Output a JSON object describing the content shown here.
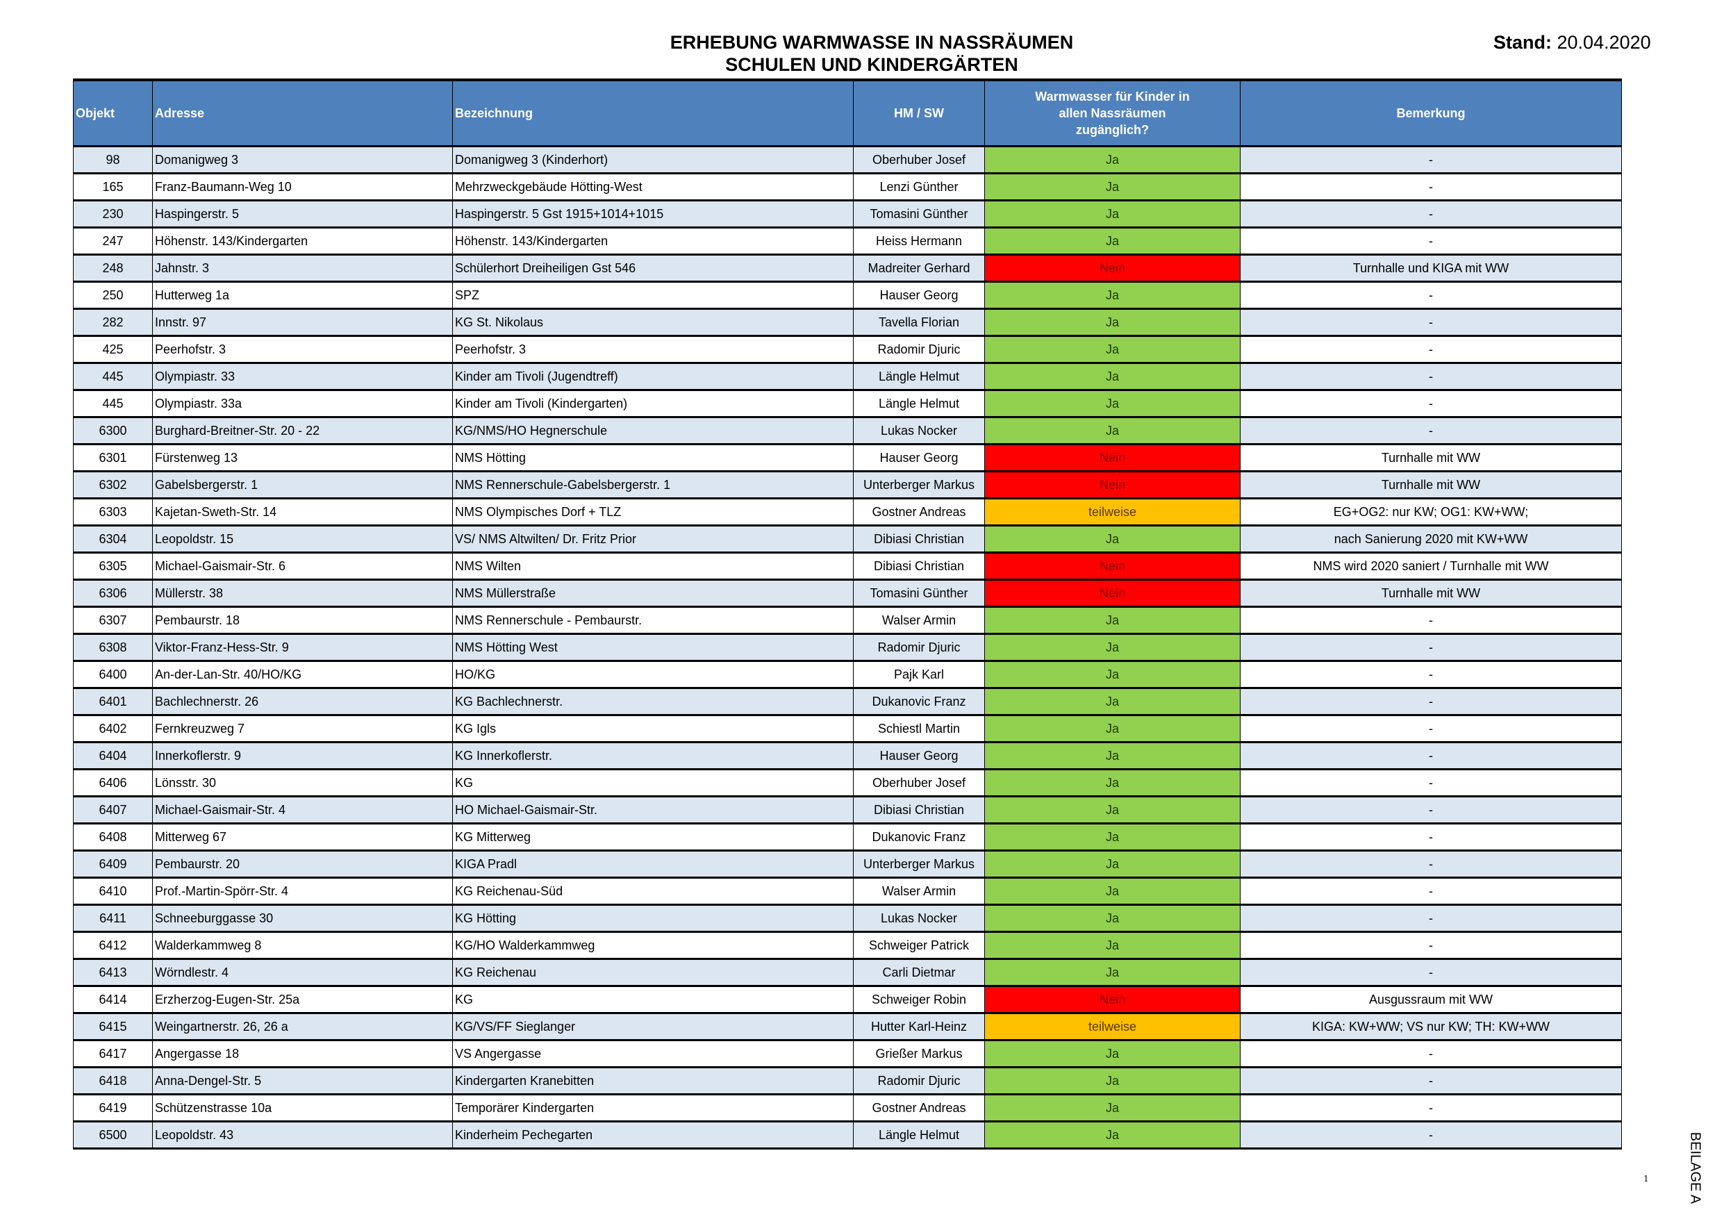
{
  "header": {
    "title_line1": "ERHEBUNG WARMWASSE IN NASSRÄUMEN",
    "title_line2": "SCHULEN UND KINDERGÄRTEN",
    "stand_label": "Stand:",
    "stand_date": "20.04.2020"
  },
  "table": {
    "columns": [
      "Objekt",
      "Adresse",
      "Bezeichnung",
      "HM / SW",
      "Warmwasser für Kinder in  allen Nassräumen zugänglich?",
      "Bemerkung"
    ],
    "status_colors": {
      "Ja": "#92D050",
      "Nein": "#FF0000",
      "teilweise": "#FFC000"
    },
    "header_color": "#4F81BD",
    "alt_row_color": "#DCE6F1",
    "rows": [
      [
        "98",
        "Domanigweg  3",
        "Domanigweg 3 (Kinderhort)",
        "Oberhuber Josef",
        "Ja",
        "-"
      ],
      [
        "165",
        "Franz-Baumann-Weg 10",
        "Mehrzweckgebäude Hötting-West",
        "Lenzi Günther",
        "Ja",
        "-"
      ],
      [
        "230",
        "Haspingerstr. 5",
        "Haspingerstr. 5 Gst 1915+1014+1015",
        "Tomasini Günther",
        "Ja",
        "-"
      ],
      [
        "247",
        "Höhenstr. 143/Kindergarten",
        "Höhenstr. 143/Kindergarten",
        "Heiss Hermann",
        "Ja",
        "-"
      ],
      [
        "248",
        "Jahnstr. 3",
        "Schülerhort Dreiheiligen Gst 546",
        "Madreiter Gerhard",
        "Nein",
        "Turnhalle und KIGA mit WW"
      ],
      [
        "250",
        "Hutterweg 1a",
        "SPZ",
        "Hauser Georg",
        "Ja",
        "-"
      ],
      [
        "282",
        "Innstr. 97",
        "KG St. Nikolaus",
        "Tavella Florian",
        "Ja",
        "-"
      ],
      [
        "425",
        "Peerhofstr. 3",
        "Peerhofstr. 3",
        "Radomir Djuric",
        "Ja",
        "-"
      ],
      [
        "445",
        "Olympiastr. 33",
        "Kinder am Tivoli (Jugendtreff)",
        "Längle Helmut",
        "Ja",
        "-"
      ],
      [
        "445",
        "Olympiastr. 33a",
        "Kinder am Tivoli (Kindergarten)",
        "Längle Helmut",
        "Ja",
        "-"
      ],
      [
        "6300",
        "Burghard-Breitner-Str. 20 - 22",
        "KG/NMS/HO Hegnerschule",
        "Lukas Nocker",
        "Ja",
        "-"
      ],
      [
        "6301",
        "Fürstenweg 13",
        "NMS Hötting",
        "Hauser Georg",
        "Nein",
        "Turnhalle mit WW"
      ],
      [
        "6302",
        "Gabelsbergerstr. 1",
        "NMS Rennerschule-Gabelsbergerstr. 1",
        "Unterberger Markus",
        "Nein",
        "Turnhalle mit WW"
      ],
      [
        "6303",
        "Kajetan-Sweth-Str. 14",
        "NMS Olympisches Dorf + TLZ",
        "Gostner Andreas",
        "teilweise",
        "EG+OG2: nur KW; OG1: KW+WW;"
      ],
      [
        "6304",
        "Leopoldstr. 15",
        "VS/ NMS Altwilten/ Dr. Fritz Prior",
        "Dibiasi Christian",
        "Ja",
        "nach Sanierung 2020 mit KW+WW"
      ],
      [
        "6305",
        "Michael-Gaismair-Str. 6",
        "NMS Wilten",
        "Dibiasi Christian",
        "Nein",
        "NMS wird 2020 saniert / Turnhalle mit WW"
      ],
      [
        "6306",
        "Müllerstr. 38",
        "NMS Müllerstraße",
        "Tomasini Günther",
        "Nein",
        "Turnhalle mit WW"
      ],
      [
        "6307",
        "Pembaurstr. 18",
        "NMS Rennerschule - Pembaurstr.",
        "Walser Armin",
        "Ja",
        "-"
      ],
      [
        "6308",
        "Viktor-Franz-Hess-Str. 9",
        "NMS Hötting West",
        "Radomir Djuric",
        "Ja",
        "-"
      ],
      [
        "6400",
        "An-der-Lan-Str. 40/HO/KG",
        "HO/KG",
        "Pajk Karl",
        "Ja",
        "-"
      ],
      [
        "6401",
        "Bachlechnerstr. 26",
        "KG Bachlechnerstr.",
        "Dukanovic Franz",
        "Ja",
        "-"
      ],
      [
        "6402",
        "Fernkreuzweg 7",
        "KG Igls",
        "Schiestl Martin",
        "Ja",
        "-"
      ],
      [
        "6404",
        "Innerkoflerstr. 9",
        "KG Innerkoflerstr.",
        "Hauser Georg",
        "Ja",
        "-"
      ],
      [
        "6406",
        "Lönsstr. 30",
        "KG",
        "Oberhuber Josef",
        "Ja",
        "-"
      ],
      [
        "6407",
        "Michael-Gaismair-Str. 4",
        "HO Michael-Gaismair-Str.",
        "Dibiasi Christian",
        "Ja",
        "-"
      ],
      [
        "6408",
        "Mitterweg 67",
        "KG Mitterweg",
        "Dukanovic Franz",
        "Ja",
        "-"
      ],
      [
        "6409",
        "Pembaurstr. 20",
        "KIGA Pradl",
        "Unterberger Markus",
        "Ja",
        "-"
      ],
      [
        "6410",
        "Prof.-Martin-Spörr-Str. 4",
        "KG Reichenau-Süd",
        "Walser Armin",
        "Ja",
        "-"
      ],
      [
        "6411",
        "Schneeburggasse 30",
        "KG Hötting",
        "Lukas Nocker",
        "Ja",
        "-"
      ],
      [
        "6412",
        "Walderkammweg 8",
        "KG/HO Walderkammweg",
        "Schweiger Patrick",
        "Ja",
        "-"
      ],
      [
        "6413",
        "Wörndlestr. 4",
        "KG Reichenau",
        "Carli Dietmar",
        "Ja",
        "-"
      ],
      [
        "6414",
        "Erzherzog-Eugen-Str. 25a",
        "KG",
        "Schweiger Robin",
        "Nein",
        "Ausgussraum mit WW"
      ],
      [
        "6415",
        "Weingartnerstr. 26, 26 a",
        "KG/VS/FF Sieglanger",
        "Hutter Karl-Heinz",
        "teilweise",
        "KIGA: KW+WW; VS nur KW; TH: KW+WW"
      ],
      [
        "6417",
        "Angergasse 18",
        "VS Angergasse",
        "Grießer Markus",
        "Ja",
        "-"
      ],
      [
        "6418",
        "Anna-Dengel-Str. 5",
        "Kindergarten Kranebitten",
        "Radomir Djuric",
        "Ja",
        "-"
      ],
      [
        "6419",
        "Schützenstrasse 10a",
        "Temporärer Kindergarten",
        "Gostner Andreas",
        "Ja",
        "-"
      ],
      [
        "6500",
        "Leopoldstr. 43",
        "Kinderheim Pechegarten",
        "Längle Helmut",
        "Ja",
        "-"
      ]
    ]
  },
  "footer": {
    "page_number": "1",
    "attachment_label": "BEILAGE A"
  }
}
